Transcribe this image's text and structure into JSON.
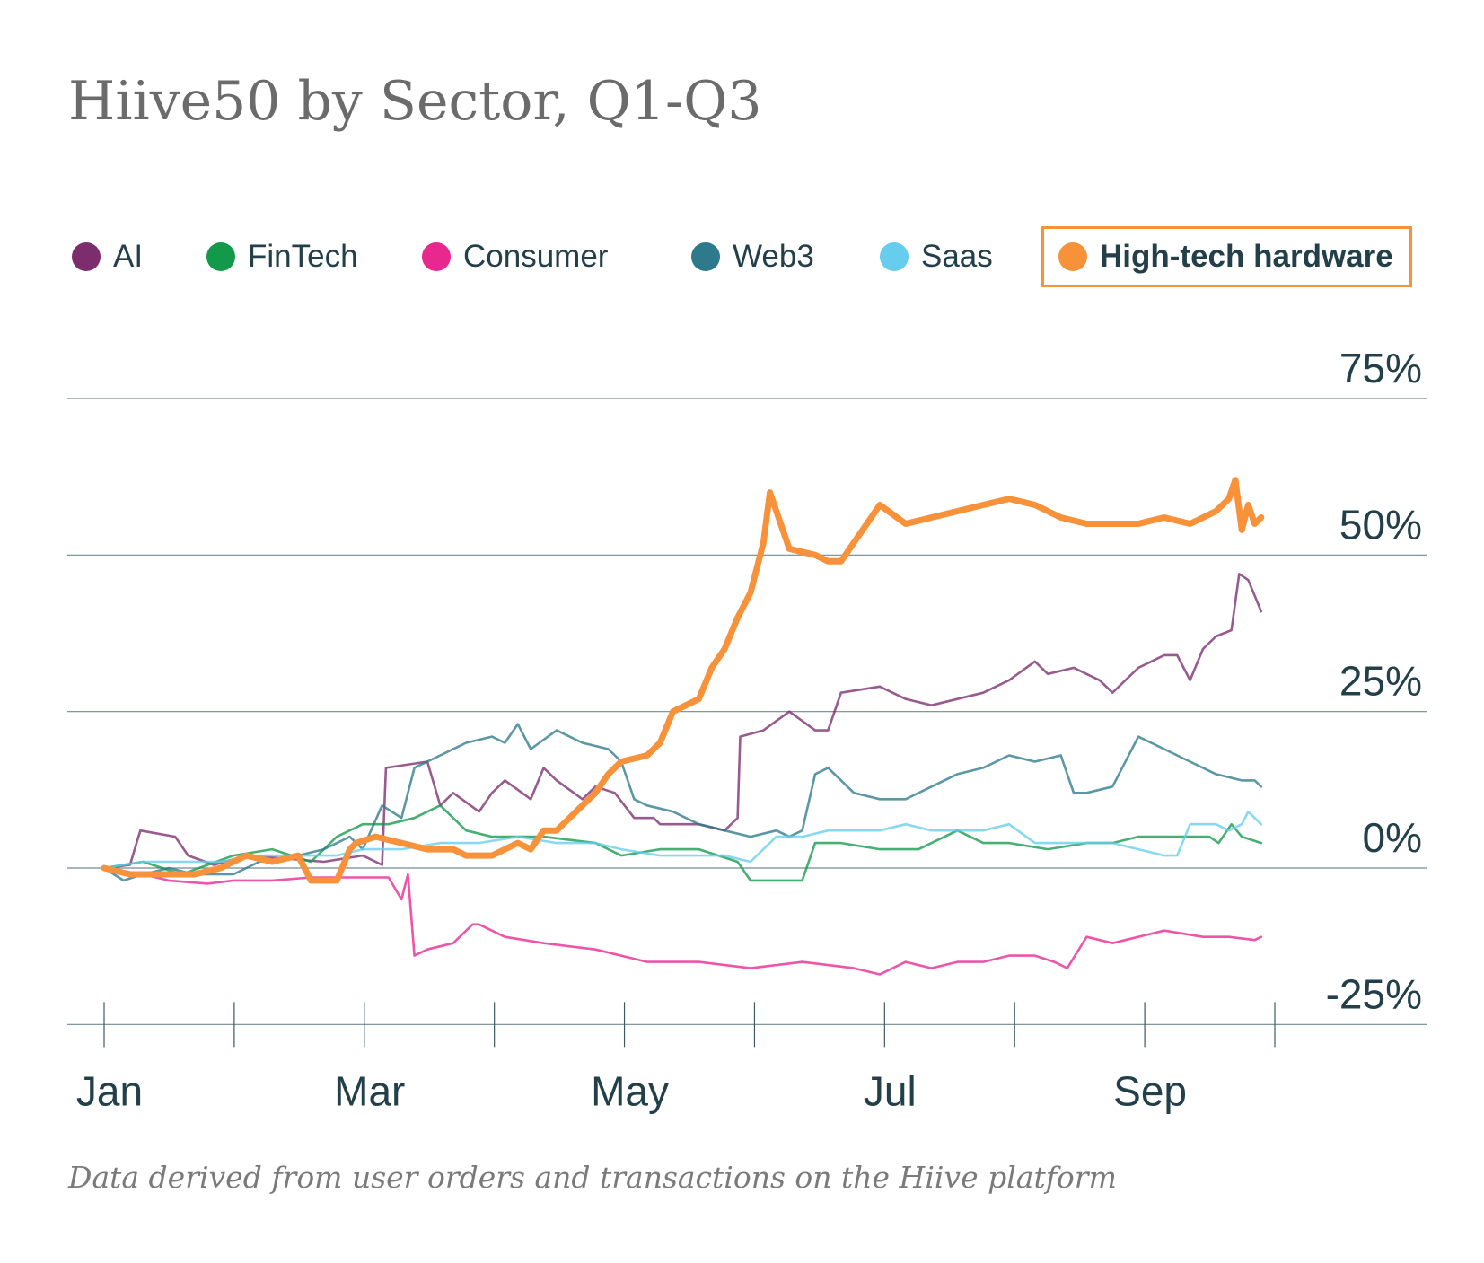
{
  "chart_data": {
    "type": "line",
    "title": "Hiive50 by Sector, Q1-Q3",
    "footnote": "Data derived from user orders and transactions on the Hiive platform",
    "xlabel": "",
    "ylabel": "",
    "ylim": [
      -25,
      75
    ],
    "y_ticks": [
      75,
      50,
      25,
      0,
      -25
    ],
    "y_tick_labels": [
      "75%",
      "50%",
      "25%",
      "0%",
      "-25%"
    ],
    "x_tick_labels": [
      "Jan",
      "Mar",
      "May",
      "Jul",
      "Sep"
    ],
    "x_tick_months": [
      1,
      3,
      5,
      7,
      9
    ],
    "x_minor_months": [
      1,
      2,
      3,
      4,
      5,
      6,
      7,
      8,
      9,
      10
    ],
    "xlim_months": [
      1,
      10
    ],
    "legend_position": "top",
    "highlighted_series": "High-tech hardware",
    "series": [
      {
        "name": "AI",
        "color": "#7b2d6e",
        "x": [
          1.0,
          1.2,
          1.28,
          1.55,
          1.65,
          1.85,
          2.1,
          2.4,
          2.7,
          3.0,
          3.15,
          3.18,
          3.5,
          3.6,
          3.7,
          3.9,
          4.0,
          4.1,
          4.3,
          4.4,
          4.5,
          4.7,
          4.8,
          4.95,
          5.1,
          5.25,
          5.3,
          5.6,
          5.8,
          5.9,
          5.92,
          6.1,
          6.3,
          6.5,
          6.6,
          6.7,
          7.0,
          7.2,
          7.4,
          7.6,
          7.8,
          8.0,
          8.2,
          8.3,
          8.5,
          8.7,
          8.8,
          9.0,
          9.2,
          9.3,
          9.4,
          9.5,
          9.6,
          9.72,
          9.78,
          9.85,
          9.95
        ],
        "y": [
          0,
          0.5,
          6,
          5,
          2,
          0.5,
          2,
          1.5,
          1,
          2,
          0.5,
          16,
          17,
          10,
          12,
          9,
          12,
          14,
          11,
          16,
          14,
          11,
          13,
          12,
          8,
          8,
          7,
          7,
          6,
          8,
          21,
          22,
          25,
          22,
          22,
          28,
          29,
          27,
          26,
          27,
          28,
          30,
          33,
          31,
          32,
          30,
          28,
          32,
          34,
          34,
          30,
          35,
          37,
          38,
          47,
          46,
          41
        ]
      },
      {
        "name": "FinTech",
        "color": "#12994a",
        "x": [
          1.0,
          1.3,
          1.6,
          2.0,
          2.3,
          2.6,
          2.8,
          3.0,
          3.2,
          3.4,
          3.6,
          3.8,
          4.0,
          4.4,
          4.8,
          5.0,
          5.3,
          5.6,
          5.9,
          6.0,
          6.4,
          6.5,
          6.7,
          7.0,
          7.3,
          7.6,
          7.8,
          8.0,
          8.3,
          8.6,
          8.8,
          9.0,
          9.3,
          9.55,
          9.62,
          9.72,
          9.8,
          9.95
        ],
        "y": [
          0,
          1,
          -1,
          2,
          3,
          1,
          5,
          7,
          7,
          8,
          10,
          6,
          5,
          5,
          4,
          2,
          3,
          3,
          1,
          -2,
          -2,
          4,
          4,
          3,
          3,
          6,
          4,
          4,
          3,
          4,
          4,
          5,
          5,
          5,
          4,
          7,
          5,
          4
        ]
      },
      {
        "name": "Consumer",
        "color": "#e8278f",
        "x": [
          1.0,
          1.3,
          1.5,
          1.8,
          2.0,
          2.3,
          2.6,
          2.8,
          3.0,
          3.2,
          3.3,
          3.35,
          3.4,
          3.5,
          3.7,
          3.85,
          3.9,
          4.1,
          4.4,
          4.8,
          5.2,
          5.6,
          5.8,
          6.0,
          6.4,
          6.8,
          7.0,
          7.2,
          7.4,
          7.6,
          7.8,
          8.0,
          8.2,
          8.35,
          8.45,
          8.6,
          8.8,
          9.0,
          9.2,
          9.5,
          9.7,
          9.9,
          9.95
        ],
        "y": [
          0,
          -1,
          -2,
          -2.5,
          -2,
          -2,
          -1.5,
          -1.5,
          -1.5,
          -1.5,
          -5,
          -1,
          -14,
          -13,
          -12,
          -9,
          -9,
          -11,
          -12,
          -13,
          -15,
          -15,
          -15.5,
          -16,
          -15,
          -16,
          -17,
          -15,
          -16,
          -15,
          -15,
          -14,
          -14,
          -15,
          -16,
          -11,
          -12,
          -11,
          -10,
          -11,
          -11,
          -11.5,
          -11
        ]
      },
      {
        "name": "Web3",
        "color": "#2e7a8c",
        "x": [
          1.0,
          1.15,
          1.3,
          1.5,
          1.7,
          2.0,
          2.2,
          2.5,
          2.7,
          2.9,
          3.0,
          3.15,
          3.3,
          3.4,
          3.6,
          3.8,
          4.0,
          4.1,
          4.2,
          4.3,
          4.5,
          4.7,
          4.9,
          5.0,
          5.1,
          5.2,
          5.4,
          5.6,
          5.8,
          6.0,
          6.2,
          6.3,
          6.4,
          6.5,
          6.6,
          6.8,
          7.0,
          7.2,
          7.4,
          7.6,
          7.8,
          8.0,
          8.2,
          8.4,
          8.5,
          8.6,
          8.8,
          9.0,
          9.2,
          9.3,
          9.4,
          9.6,
          9.8,
          9.9,
          9.95
        ],
        "y": [
          0,
          -2,
          -1,
          0,
          -1,
          -1,
          1,
          2,
          3,
          5,
          3,
          10,
          8,
          16,
          18,
          20,
          21,
          20,
          23,
          19,
          22,
          20,
          19,
          17,
          11,
          10,
          9,
          7,
          6,
          5,
          6,
          5,
          6,
          15,
          16,
          12,
          11,
          11,
          13,
          15,
          16,
          18,
          17,
          18,
          12,
          12,
          13,
          21,
          19,
          18,
          17,
          15,
          14,
          14,
          13
        ]
      },
      {
        "name": "Saas",
        "color": "#66cdec",
        "x": [
          1.0,
          1.3,
          1.6,
          1.9,
          2.2,
          2.5,
          2.8,
          3.0,
          3.3,
          3.6,
          3.9,
          4.2,
          4.5,
          4.8,
          5.0,
          5.3,
          5.6,
          5.8,
          6.0,
          6.2,
          6.4,
          6.6,
          6.8,
          7.0,
          7.2,
          7.4,
          7.6,
          7.8,
          8.0,
          8.2,
          8.4,
          8.6,
          8.8,
          9.0,
          9.2,
          9.3,
          9.4,
          9.6,
          9.7,
          9.8,
          9.85,
          9.9,
          9.95
        ],
        "y": [
          0,
          1,
          1,
          1,
          2,
          2,
          2,
          3,
          3,
          4,
          4,
          5,
          4,
          4,
          3,
          2,
          2,
          2,
          1,
          5,
          5,
          6,
          6,
          6,
          7,
          6,
          6,
          6,
          7,
          4,
          4,
          4,
          4,
          3,
          2,
          2,
          7,
          7,
          6,
          7,
          9,
          8,
          7
        ]
      },
      {
        "name": "High-tech hardware",
        "color": "#f7923a",
        "x": [
          1.0,
          1.2,
          1.4,
          1.7,
          1.9,
          2.0,
          2.1,
          2.3,
          2.5,
          2.6,
          2.8,
          2.9,
          2.95,
          3.1,
          3.3,
          3.5,
          3.7,
          3.8,
          4.0,
          4.2,
          4.3,
          4.4,
          4.5,
          4.6,
          4.8,
          4.9,
          5.0,
          5.2,
          5.3,
          5.4,
          5.6,
          5.7,
          5.8,
          5.9,
          6.0,
          6.1,
          6.15,
          6.3,
          6.5,
          6.6,
          6.7,
          6.8,
          6.9,
          7.0,
          7.2,
          7.4,
          7.6,
          7.8,
          8.0,
          8.2,
          8.4,
          8.6,
          8.8,
          9.0,
          9.2,
          9.4,
          9.6,
          9.7,
          9.75,
          9.8,
          9.85,
          9.9,
          9.95
        ],
        "y": [
          0,
          -1,
          -1,
          -1,
          0,
          1,
          2,
          1,
          2,
          -2,
          -2,
          3,
          4,
          5,
          4,
          3,
          3,
          2,
          2,
          4,
          3,
          6,
          6,
          8,
          12,
          15,
          17,
          18,
          20,
          25,
          27,
          32,
          35,
          40,
          44,
          52,
          60,
          51,
          50,
          49,
          49,
          52,
          55,
          58,
          55,
          56,
          57,
          58,
          59,
          58,
          56,
          55,
          55,
          55,
          56,
          55,
          57,
          59,
          62,
          54,
          58,
          55,
          56
        ]
      }
    ]
  }
}
